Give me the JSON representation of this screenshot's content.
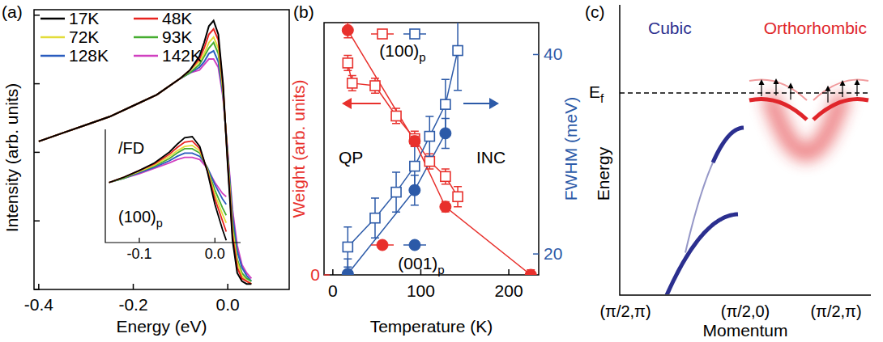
{
  "chart_data": [
    {
      "type": "line",
      "label": "(a)",
      "x_label": "Energy (eV)",
      "y_label": "Intensity (arb. units)",
      "xlim": [
        -0.41,
        0.13
      ],
      "xticks": [
        -0.4,
        -0.2,
        {
          "value": 0,
          "label": "0.0"
        }
      ],
      "ylim": [
        0,
        1.02
      ],
      "yticks": [
        0,
        0.25,
        0.5,
        0.75,
        1
      ],
      "tick_labels": "x",
      "legend": "upper left",
      "x": [
        -0.4,
        -0.35,
        -0.3,
        -0.25,
        -0.2,
        -0.15,
        -0.1,
        -0.08,
        -0.06,
        -0.05,
        -0.04,
        -0.03,
        -0.02,
        -0.01,
        0,
        0.01,
        0.02,
        0.03,
        0.04,
        0.05
      ],
      "series": [
        {
          "name": "17K",
          "color": "#000000",
          "values": [
            0.54,
            0.57,
            0.6,
            0.63,
            0.67,
            0.71,
            0.77,
            0.8,
            0.85,
            0.9,
            0.96,
            0.98,
            0.93,
            0.75,
            0.45,
            0.18,
            0.06,
            0.03,
            0.02,
            0.02
          ]
        },
        {
          "name": "48K",
          "color": "#e8231f",
          "values": [
            0.54,
            0.57,
            0.6,
            0.63,
            0.67,
            0.71,
            0.77,
            0.8,
            0.84,
            0.88,
            0.93,
            0.95,
            0.91,
            0.74,
            0.46,
            0.2,
            0.08,
            0.04,
            0.03,
            0.02
          ]
        },
        {
          "name": "72K",
          "color": "#e3dc3a",
          "values": [
            0.54,
            0.57,
            0.6,
            0.63,
            0.67,
            0.71,
            0.77,
            0.8,
            0.83,
            0.86,
            0.9,
            0.92,
            0.88,
            0.73,
            0.47,
            0.22,
            0.1,
            0.05,
            0.03,
            0.02
          ]
        },
        {
          "name": "93K",
          "color": "#46ad30",
          "values": [
            0.54,
            0.57,
            0.6,
            0.63,
            0.67,
            0.71,
            0.77,
            0.79,
            0.82,
            0.85,
            0.88,
            0.9,
            0.86,
            0.72,
            0.48,
            0.24,
            0.11,
            0.06,
            0.04,
            0.03
          ]
        },
        {
          "name": "128K",
          "color": "#2a5cbf",
          "values": [
            0.54,
            0.57,
            0.6,
            0.63,
            0.67,
            0.71,
            0.77,
            0.79,
            0.81,
            0.83,
            0.86,
            0.87,
            0.83,
            0.71,
            0.49,
            0.27,
            0.14,
            0.08,
            0.05,
            0.03
          ]
        },
        {
          "name": "142K",
          "color": "#d040c0",
          "values": [
            0.54,
            0.57,
            0.6,
            0.63,
            0.67,
            0.71,
            0.77,
            0.79,
            0.8,
            0.82,
            0.84,
            0.84,
            0.81,
            0.7,
            0.5,
            0.29,
            0.16,
            0.09,
            0.06,
            0.04
          ]
        }
      ],
      "inset": {
        "type": "line",
        "annotations": [
          "/FD",
          "(100)p"
        ],
        "xlim": [
          -0.145,
          0.034
        ],
        "xticks": [
          -0.1,
          {
            "value": 0,
            "label": "0.0"
          }
        ],
        "ylim": [
          0,
          1
        ],
        "tick_labels": "x",
        "x": [
          -0.14,
          -0.12,
          -0.1,
          -0.08,
          -0.06,
          -0.05,
          -0.04,
          -0.03,
          -0.02,
          -0.01,
          0,
          0.01,
          0.015
        ],
        "series": [
          {
            "color": "#000000",
            "values": [
              0.55,
              0.6,
              0.66,
              0.73,
              0.83,
              0.9,
              0.96,
              0.97,
              0.88,
              0.65,
              0.35,
              0.12,
              0.02
            ]
          },
          {
            "color": "#e8231f",
            "values": [
              0.55,
              0.6,
              0.66,
              0.72,
              0.81,
              0.87,
              0.92,
              0.93,
              0.86,
              0.66,
              0.4,
              0.2,
              0.1
            ]
          },
          {
            "color": "#e3dc3a",
            "values": [
              0.55,
              0.6,
              0.65,
              0.71,
              0.79,
              0.84,
              0.88,
              0.89,
              0.84,
              0.67,
              0.44,
              0.26,
              0.18
            ]
          },
          {
            "color": "#46ad30",
            "values": [
              0.55,
              0.59,
              0.65,
              0.7,
              0.77,
              0.82,
              0.86,
              0.86,
              0.82,
              0.68,
              0.48,
              0.32,
              0.25
            ]
          },
          {
            "color": "#2a5cbf",
            "values": [
              0.55,
              0.59,
              0.64,
              0.69,
              0.75,
              0.79,
              0.82,
              0.82,
              0.79,
              0.69,
              0.53,
              0.4,
              0.35
            ]
          },
          {
            "color": "#d040c0",
            "values": [
              0.55,
              0.59,
              0.63,
              0.68,
              0.73,
              0.76,
              0.78,
              0.78,
              0.76,
              0.68,
              0.55,
              0.45,
              0.42
            ]
          }
        ]
      }
    },
    {
      "type": "scatter",
      "label": "(b)",
      "x_label": "Temperature (K)",
      "y_label": "Weight (arb. units)",
      "y2_label": "FWHM (meV)",
      "annotations": [
        "QP",
        "INC"
      ],
      "xlim": [
        -10,
        234
      ],
      "xticks": [
        0,
        100,
        200
      ],
      "ylim": [
        0,
        1
      ],
      "yticks": [
        0
      ],
      "y2lim": [
        17.9,
        43.2
      ],
      "y2ticks": [
        20,
        40
      ],
      "series": [
        {
          "name": "(100)p",
          "color": "#e8302c",
          "marker": "square-open",
          "axis": "y",
          "x": [
            17,
            22,
            48,
            72,
            93,
            110,
            128,
            142
          ],
          "values": [
            0.84,
            0.76,
            0.75,
            0.63,
            0.54,
            0.45,
            0.39,
            0.31
          ],
          "errors": [
            0.03,
            0.03,
            0.03,
            0.03,
            0.03,
            0.03,
            0.03,
            0.04
          ]
        },
        {
          "color": "#2c5aa8",
          "marker": "square-open",
          "axis": "y2",
          "x": [
            17,
            48,
            72,
            93,
            110,
            128,
            142
          ],
          "values": [
            20.7,
            23.6,
            26.2,
            28.8,
            31.8,
            35,
            40.4
          ],
          "errors": [
            2,
            2,
            2,
            2,
            2,
            2.5,
            4
          ]
        },
        {
          "name": "(001)p",
          "color": "#e8302c",
          "marker": "circle",
          "axis": "y",
          "x": [
            17,
            93,
            128,
            225
          ],
          "values": [
            0.97,
            0.53,
            0.27,
            0
          ],
          "errors": [
            0.03,
            0.02,
            0.02,
            0.02
          ]
        },
        {
          "color": "#2c5aa8",
          "marker": "circle",
          "axis": "y2",
          "x": [
            17,
            93,
            128
          ],
          "values": [
            18,
            26.4,
            32.1
          ],
          "errors": [
            1.5,
            1.5,
            1.5
          ]
        }
      ]
    }
  ],
  "schematic": {
    "label": "(c)",
    "x_label": "Momentum",
    "y_label": "Energy",
    "fermi_label": "Ef",
    "k_labels": [
      "(π/2,π)",
      "(π/2,0)",
      "(π/2,π)"
    ],
    "bands": [
      {
        "name": "Cubic",
        "color": "#2b2f8f"
      },
      {
        "name": "Orthorhombic",
        "color": "#e0252a"
      }
    ]
  }
}
